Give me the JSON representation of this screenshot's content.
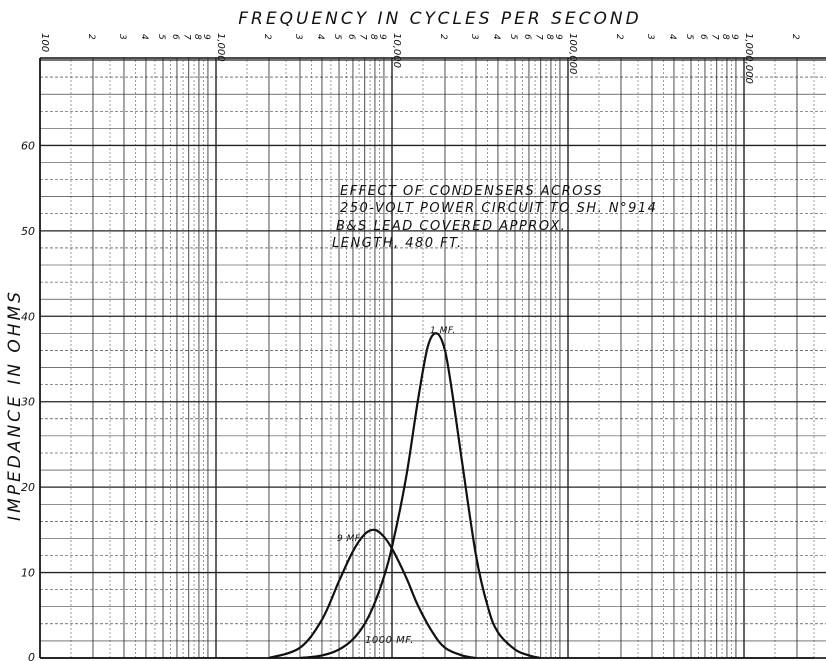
{
  "chart_data": {
    "type": "line",
    "title": "",
    "xlabel": "FREQUENCY IN CYCLES PER SECOND",
    "ylabel": "IMPEDANCE IN OHMS",
    "x_scale": "log",
    "xlim": [
      100,
      2500000
    ],
    "ylim": [
      0,
      70
    ],
    "grid": true,
    "x_decade_labels": [
      {
        "value": 100,
        "label": "100"
      },
      {
        "value": 1000,
        "label": "1,000"
      },
      {
        "value": 10000,
        "label": "10,000"
      },
      {
        "value": 100000,
        "label": "100,000"
      },
      {
        "value": 1000000,
        "label": "1,000,000"
      }
    ],
    "x_minor_digits": [
      "2",
      "3",
      "4",
      "5",
      "6",
      "7",
      "8",
      "9"
    ],
    "y_ticks": [
      {
        "value": 10,
        "label": "10"
      },
      {
        "value": 20,
        "label": "20"
      },
      {
        "value": 30,
        "label": "30"
      },
      {
        "value": 40,
        "label": "40"
      },
      {
        "value": 50,
        "label": "50"
      },
      {
        "value": 60,
        "label": "60"
      }
    ],
    "y_zero_label": "0",
    "annotation_lines": [
      "EFFECT OF CONDENSERS ACROSS",
      "250-VOLT POWER CIRCUIT TO SH. N°914",
      "B&S LEAD COVERED APPROX.",
      "LENGTH, 480 FT."
    ],
    "series": [
      {
        "name": "9 MF.",
        "x": [
          2000,
          3000,
          4000,
          5000,
          6000,
          7000,
          8000,
          9000,
          10000,
          12000,
          14000,
          17000,
          20000,
          25000,
          30000
        ],
        "y": [
          0,
          1.2,
          4.5,
          9.0,
          12.5,
          14.5,
          15.0,
          14.2,
          12.8,
          9.5,
          6.2,
          3.0,
          1.2,
          0.3,
          0
        ]
      },
      {
        "name": "1 MF.",
        "x": [
          3000,
          4000,
          5000,
          6000,
          7000,
          8000,
          9000,
          10000,
          12000,
          14000,
          16000,
          18000,
          20000,
          22000,
          25000,
          30000,
          35000,
          40000,
          50000,
          60000,
          70000
        ],
        "y": [
          0,
          0.3,
          1.0,
          2.2,
          4.0,
          6.5,
          9.5,
          13.0,
          21.0,
          30.0,
          36.5,
          38.0,
          36.0,
          31.0,
          23.0,
          12.0,
          6.0,
          3.0,
          1.0,
          0.3,
          0
        ]
      },
      {
        "name": "1000 MF.",
        "x": [
          100,
          1000,
          10000,
          100000,
          1000000,
          2500000
        ],
        "y": [
          0,
          0,
          0,
          0,
          0,
          0
        ]
      }
    ]
  }
}
